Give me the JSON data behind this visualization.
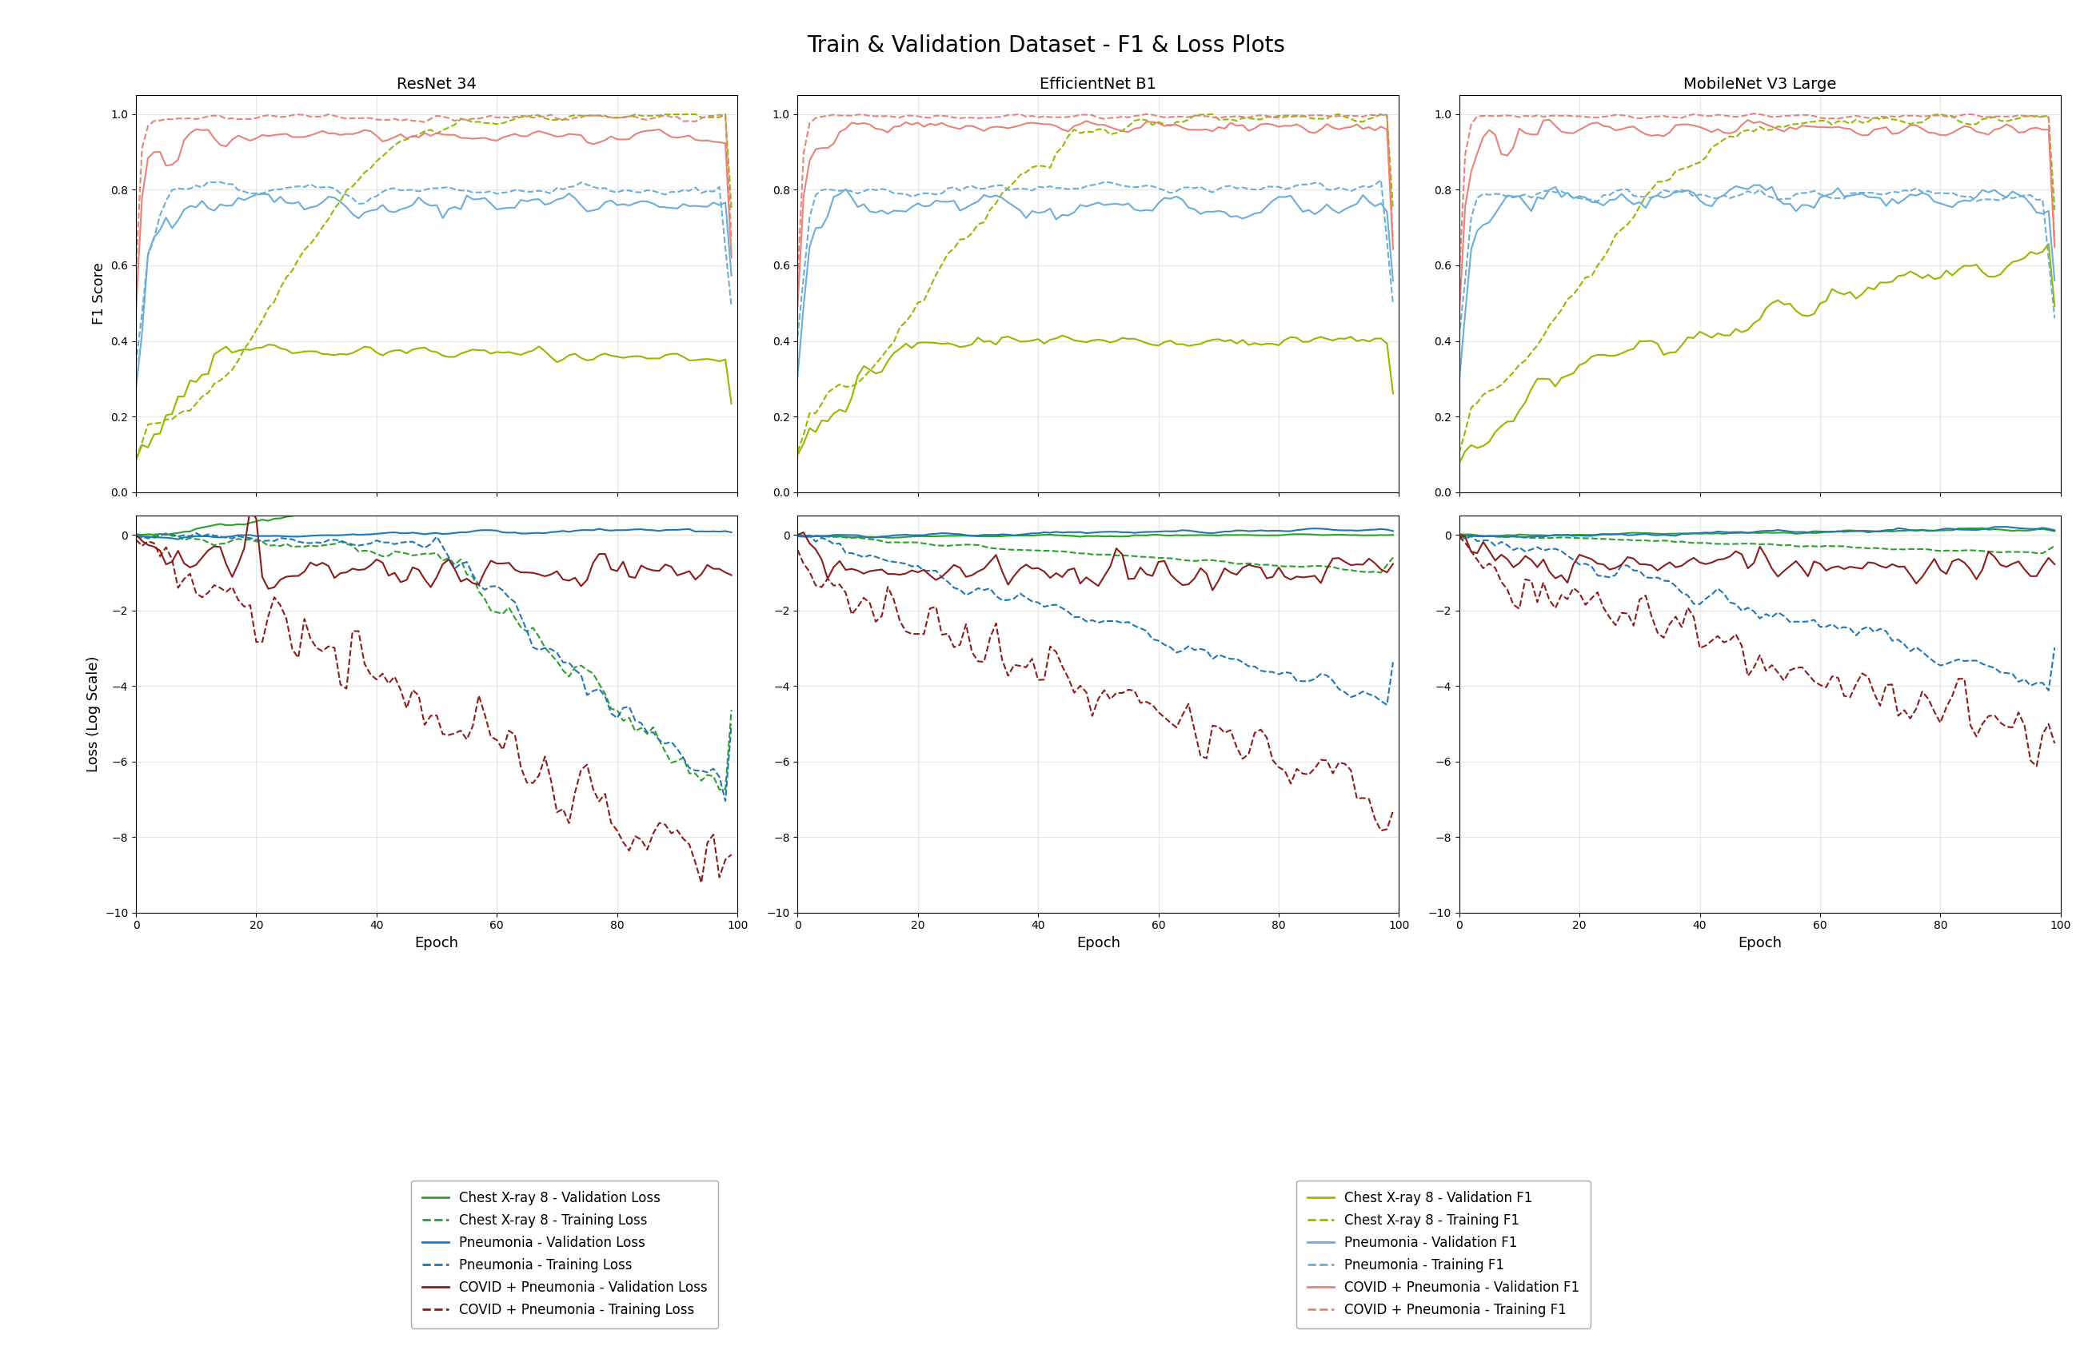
{
  "title": "Train & Validation Dataset - F1 & Loss Plots",
  "col_titles": [
    "ResNet 34",
    "EfficientNet B1",
    "MobileNet V3 Large"
  ],
  "xlabel": "Epoch",
  "ylabel_f1": "F1 Score",
  "ylabel_loss": "Loss (Log Scale)",
  "f1_ylim": [
    0.0,
    1.05
  ],
  "loss_ylim": [
    -10,
    0.5
  ],
  "epochs": 100,
  "colors": {
    "chest_dark_green": "#2ca02c",
    "chest_light_green": "#8fbc00",
    "pneumonia_blue": "#1f77b4",
    "pneumonia_light_blue": "#6baed6",
    "covid_dark_red": "#8b1c1c",
    "covid_pink": "#e8837a"
  },
  "legend_entries_loss": [
    {
      "label": "Chest X-ray 8 - Validation Loss",
      "color": "#2ca02c",
      "linestyle": "solid"
    },
    {
      "label": "Chest X-ray 8 - Training Loss",
      "color": "#2ca02c",
      "linestyle": "dashed"
    },
    {
      "label": "Pneumonia - Validation Loss",
      "color": "#1f77b4",
      "linestyle": "solid"
    },
    {
      "label": "Pneumonia - Training Loss",
      "color": "#1f77b4",
      "linestyle": "dashed"
    },
    {
      "label": "COVID + Pneumonia - Validation Loss",
      "color": "#8b1c1c",
      "linestyle": "solid"
    },
    {
      "label": "COVID + Pneumonia - Training Loss",
      "color": "#8b1c1c",
      "linestyle": "dashed"
    }
  ],
  "legend_entries_f1": [
    {
      "label": "Chest X-ray 8 - Validation F1",
      "color": "#8fbc00",
      "linestyle": "solid"
    },
    {
      "label": "Chest X-ray 8 - Training F1",
      "color": "#8fbc00",
      "linestyle": "dashed"
    },
    {
      "label": "Pneumonia - Validation F1",
      "color": "#6baed6",
      "linestyle": "solid"
    },
    {
      "label": "Pneumonia - Training F1",
      "color": "#6baed6",
      "linestyle": "dashed"
    },
    {
      "label": "COVID + Pneumonia - Validation F1",
      "color": "#e8837a",
      "linestyle": "solid"
    },
    {
      "label": "COVID + Pneumonia - Training F1",
      "color": "#e8837a",
      "linestyle": "dashed"
    }
  ]
}
